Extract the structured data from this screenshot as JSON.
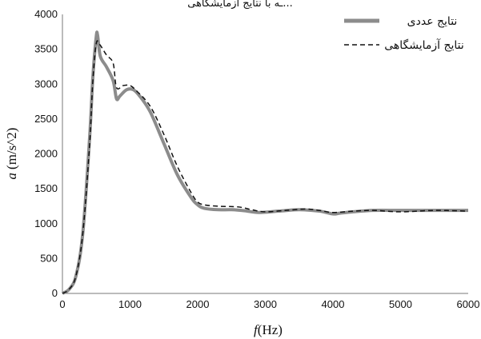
{
  "header_fragment": "...ـه با نتایج آزمایشگاهی",
  "chart_data": {
    "type": "line",
    "title": "",
    "xlabel_var": "f",
    "xlabel_unit": "(Hz)",
    "ylabel_var": "a",
    "ylabel_unit": "(m/s^2)",
    "xlim": [
      0,
      6000
    ],
    "ylim": [
      0,
      4000
    ],
    "x_ticks": [
      0,
      1000,
      2000,
      3000,
      4000,
      5000,
      6000
    ],
    "y_ticks": [
      0,
      500,
      1000,
      1500,
      2000,
      2500,
      3000,
      3500,
      4000
    ],
    "grid": false,
    "legend_position": "top-right",
    "series": [
      {
        "name": "نتایج عددی",
        "color": "#8c8c8c",
        "style": "solid",
        "points": [
          [
            0,
            0
          ],
          [
            100,
            60
          ],
          [
            200,
            250
          ],
          [
            300,
            850
          ],
          [
            400,
            2200
          ],
          [
            450,
            3100
          ],
          [
            500,
            3680
          ],
          [
            520,
            3700
          ],
          [
            560,
            3400
          ],
          [
            650,
            3250
          ],
          [
            750,
            3050
          ],
          [
            800,
            2790
          ],
          [
            850,
            2830
          ],
          [
            950,
            2920
          ],
          [
            1050,
            2920
          ],
          [
            1150,
            2820
          ],
          [
            1300,
            2600
          ],
          [
            1500,
            2150
          ],
          [
            1700,
            1700
          ],
          [
            1900,
            1380
          ],
          [
            2000,
            1270
          ],
          [
            2100,
            1220
          ],
          [
            2300,
            1200
          ],
          [
            2500,
            1200
          ],
          [
            2700,
            1185
          ],
          [
            2900,
            1160
          ],
          [
            3200,
            1180
          ],
          [
            3500,
            1200
          ],
          [
            3800,
            1180
          ],
          [
            4000,
            1140
          ],
          [
            4100,
            1150
          ],
          [
            4300,
            1170
          ],
          [
            4600,
            1190
          ],
          [
            5000,
            1190
          ],
          [
            5500,
            1190
          ],
          [
            6000,
            1190
          ]
        ]
      },
      {
        "name": "نتایج آزمایشگاهی",
        "color": "#111111",
        "style": "dashed",
        "points": [
          [
            0,
            0
          ],
          [
            100,
            60
          ],
          [
            200,
            250
          ],
          [
            300,
            850
          ],
          [
            400,
            2100
          ],
          [
            450,
            3050
          ],
          [
            500,
            3580
          ],
          [
            550,
            3570
          ],
          [
            650,
            3420
          ],
          [
            750,
            3300
          ],
          [
            800,
            2950
          ],
          [
            900,
            2980
          ],
          [
            1000,
            2980
          ],
          [
            1100,
            2900
          ],
          [
            1300,
            2680
          ],
          [
            1500,
            2280
          ],
          [
            1700,
            1820
          ],
          [
            1900,
            1450
          ],
          [
            2000,
            1310
          ],
          [
            2100,
            1270
          ],
          [
            2300,
            1250
          ],
          [
            2600,
            1240
          ],
          [
            2800,
            1200
          ],
          [
            3000,
            1170
          ],
          [
            3300,
            1190
          ],
          [
            3600,
            1210
          ],
          [
            3800,
            1190
          ],
          [
            4000,
            1160
          ],
          [
            4300,
            1180
          ],
          [
            4600,
            1190
          ],
          [
            5000,
            1170
          ],
          [
            5500,
            1190
          ],
          [
            6000,
            1180
          ]
        ]
      }
    ]
  }
}
